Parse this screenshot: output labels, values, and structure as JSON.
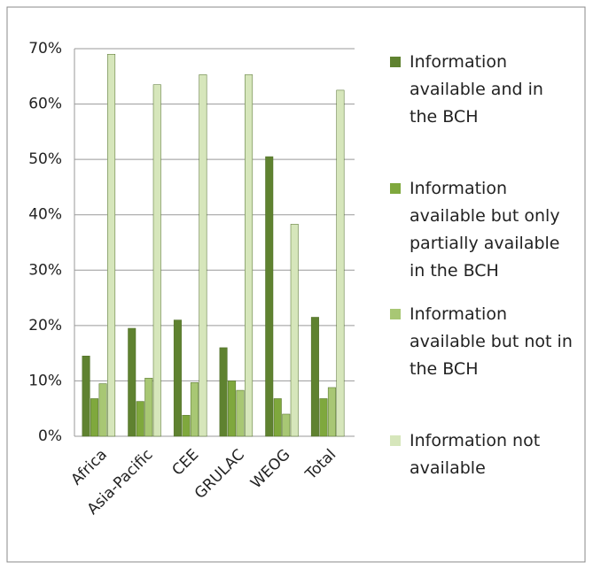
{
  "chart_data": {
    "type": "bar",
    "categories": [
      "Africa",
      "Asia-Pacific",
      "CEE",
      "GRULAC",
      "WEOG",
      "Total"
    ],
    "series": [
      {
        "name": "Information available and in the BCH",
        "color": "#5f8230",
        "values": [
          14.5,
          19.5,
          21,
          16,
          50.5,
          21.5
        ]
      },
      {
        "name": "Information available but only partially available in the BCH",
        "color": "#7fa83d",
        "values": [
          6.8,
          6.3,
          3.8,
          10,
          6.8,
          6.8
        ]
      },
      {
        "name": "Information available but not in the BCH",
        "color": "#a8c774",
        "values": [
          9.5,
          10.5,
          9.7,
          8.3,
          4,
          8.8
        ]
      },
      {
        "name": "Information not available",
        "color": "#d6e6bb",
        "values": [
          69,
          63.5,
          65.3,
          65.3,
          38.3,
          62.5
        ]
      }
    ],
    "ylim": [
      0,
      70
    ],
    "yticks": [
      {
        "value": 0,
        "label": "0%"
      },
      {
        "value": 10,
        "label": "10%"
      },
      {
        "value": 20,
        "label": "20%"
      },
      {
        "value": 30,
        "label": "30%"
      },
      {
        "value": 40,
        "label": "40%"
      },
      {
        "value": 50,
        "label": "50%"
      },
      {
        "value": 60,
        "label": "60%"
      },
      {
        "value": 70,
        "label": "70%"
      }
    ],
    "grid": true,
    "legend": "right"
  }
}
